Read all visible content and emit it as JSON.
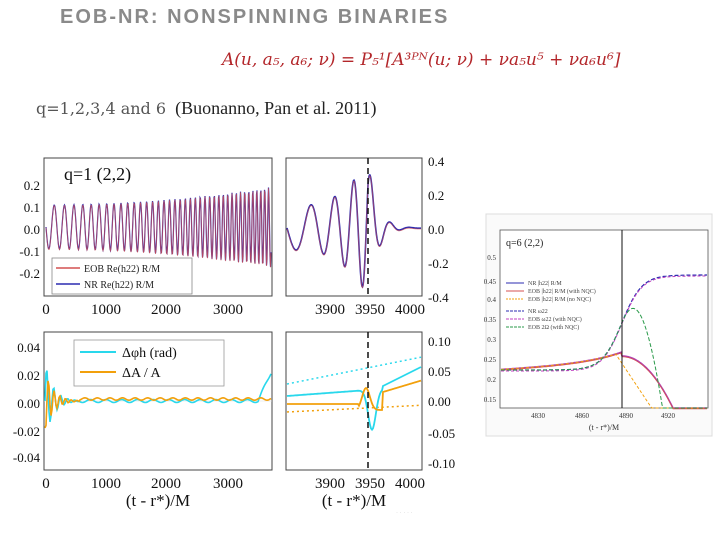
{
  "slide": {
    "title": "EOB-NR: NONSPINNING BINARIES",
    "formula": "A(u, a₅, a₆; ν) = P₅¹[A³ᴾᴺ(u; ν) + νa₅u⁵ + νa₆u⁶]",
    "caption": "q=1,2,3,4 and 6",
    "citation": "(Buonanno, Pan et al. 2011)",
    "watermark": "· · · · ·"
  },
  "colors": {
    "accent": "#b3262a",
    "eob": "#d45050",
    "nr": "#2b2bb0",
    "dphi": "#29d8ec",
    "damp": "#f2a00c"
  },
  "panel_top": {
    "label": "q=1  (2,2)",
    "legend": [
      "EOB Re(h22) R/M",
      "NR Re(h22) R/M"
    ],
    "left_y_ticks": [
      "0.2",
      "0.1",
      "0.0",
      "-0.1",
      "-0.2"
    ],
    "right_y_ticks": [
      "0.4",
      "0.2",
      "0.0",
      "-0.2",
      "-0.4"
    ],
    "left_x_ticks": [
      "0",
      "1000",
      "2000",
      "3000"
    ],
    "right_x_ticks": [
      "3900",
      "3950",
      "4000"
    ]
  },
  "panel_bottom": {
    "legend": [
      "Δφh (rad)",
      "ΔA / A"
    ],
    "left_y_ticks": [
      "0.04",
      "0.02",
      "0.00",
      "-0.02",
      "-0.04"
    ],
    "right_y_ticks": [
      "0.10",
      "0.05",
      "0.00",
      "-0.05",
      "-0.10"
    ],
    "left_x_ticks": [
      "0",
      "1000",
      "2000",
      "3000"
    ],
    "right_x_ticks": [
      "3900",
      "3950",
      "4000"
    ],
    "xlabel_left": "(t - r*)/M",
    "xlabel_right": "(t - r*)/M"
  },
  "panel_right": {
    "label": "q=6  (2,2)",
    "legend": [
      "NR |h22| R/M",
      "EOB |h22| R/M (with NQC)",
      "EOB |h22| R/M (no NQC)",
      "NR ω22",
      "EOB ω22 (with NQC)",
      "EOB 2Ω (with NQC)"
    ],
    "y_ticks": [
      "0.5",
      "0.45",
      "0.4",
      "0.35",
      "0.3",
      "0.25",
      "0.2",
      "0.15"
    ],
    "x_ticks": [
      "4830",
      "4860",
      "4890",
      "4920"
    ],
    "xlabel": "(t - r*)/M"
  }
}
